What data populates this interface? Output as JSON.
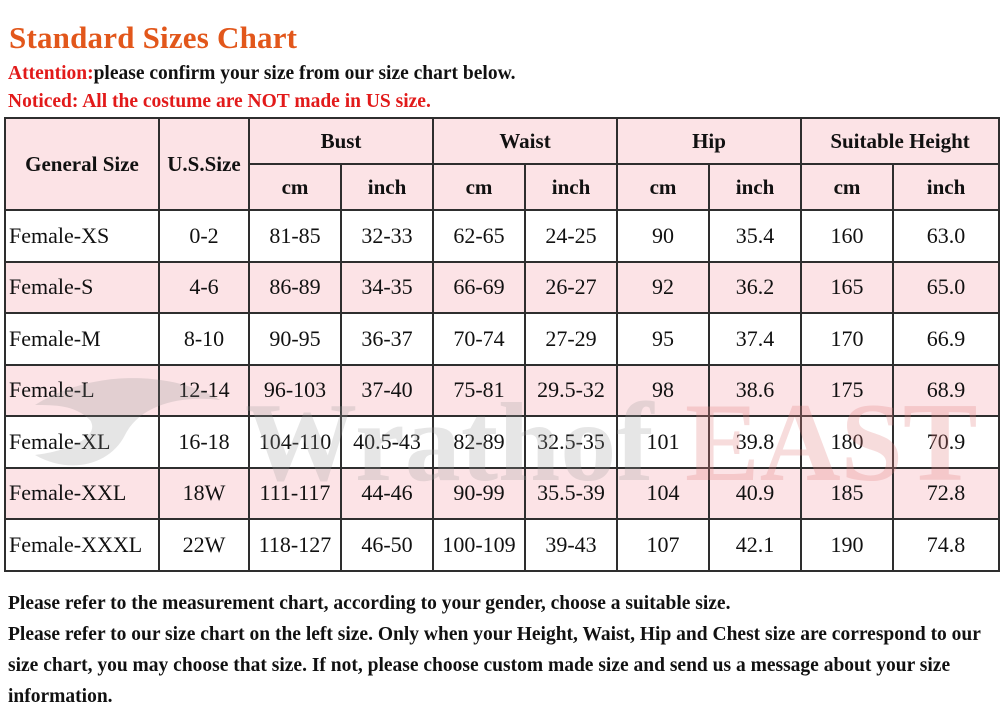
{
  "title": "Standard Sizes Chart",
  "attention": {
    "prefix": "Attention:",
    "text": "please confirm your size from our size chart below."
  },
  "noticed": "Noticed: All the costume are NOT made in US size.",
  "table": {
    "headers": {
      "general_size": "General Size",
      "us_size": "U.S.Size",
      "bust": "Bust",
      "waist": "Waist",
      "hip": "Hip",
      "suitable_height": "Suitable Height",
      "cm": "cm",
      "inch": "inch"
    },
    "rows": [
      [
        "Female-XS",
        "0-2",
        "81-85",
        "32-33",
        "62-65",
        "24-25",
        "90",
        "35.4",
        "160",
        "63.0"
      ],
      [
        "Female-S",
        "4-6",
        "86-89",
        "34-35",
        "66-69",
        "26-27",
        "92",
        "36.2",
        "165",
        "65.0"
      ],
      [
        "Female-M",
        "8-10",
        "90-95",
        "36-37",
        "70-74",
        "27-29",
        "95",
        "37.4",
        "170",
        "66.9"
      ],
      [
        "Female-L",
        "12-14",
        "96-103",
        "37-40",
        "75-81",
        "29.5-32",
        "98",
        "38.6",
        "175",
        "68.9"
      ],
      [
        "Female-XL",
        "16-18",
        "104-110",
        "40.5-43",
        "82-89",
        "32.5-35",
        "101",
        "39.8",
        "180",
        "70.9"
      ],
      [
        "Female-XXL",
        "18W",
        "111-117",
        "44-46",
        "90-99",
        "35.5-39",
        "104",
        "40.9",
        "185",
        "72.8"
      ],
      [
        "Female-XXXL",
        "22W",
        "118-127",
        "46-50",
        "100-109",
        "39-43",
        "107",
        "42.1",
        "190",
        "74.8"
      ]
    ]
  },
  "watermark": {
    "text_dark": "Wrathof",
    "text_red": "EAST",
    "colors": {
      "dark": "#9a9a9a",
      "red": "#e8a0a0"
    }
  },
  "footer": {
    "line1": "Please refer to the measurement chart, according to your gender, choose a suitable size.",
    "line2": "Please refer to our size chart on the left size. Only when your Height, Waist, Hip and Chest size are correspond to our size chart, you may choose that size. If not, please choose custom made size and send us a message about your size information."
  },
  "colors": {
    "title": "#e2571b",
    "notice_red": "#e21a1a",
    "row_pink": "#fce3e6",
    "border": "#2e2e2e"
  }
}
